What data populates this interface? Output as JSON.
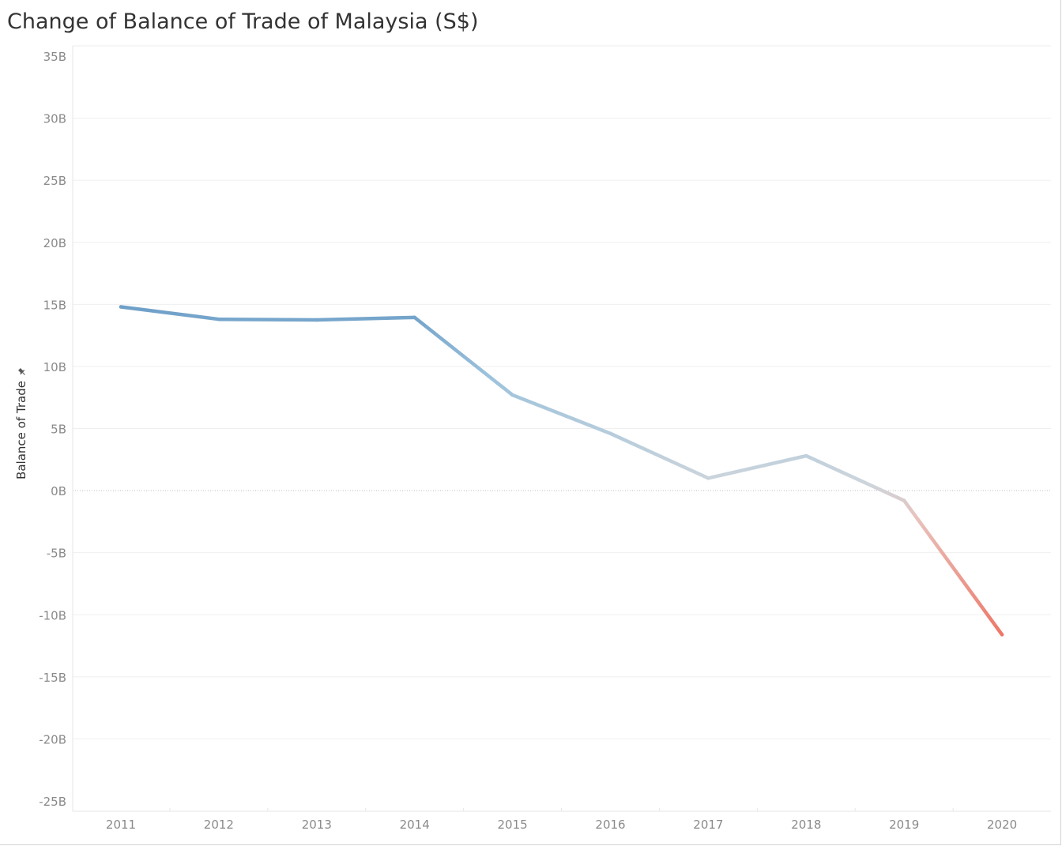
{
  "chart_data": {
    "type": "line",
    "title": "Change of Balance of Trade of Malaysia (S$)",
    "ylabel": "Balance of Trade",
    "xlabel": "",
    "categories": [
      "2011",
      "2012",
      "2013",
      "2014",
      "2015",
      "2016",
      "2017",
      "2018",
      "2019",
      "2020"
    ],
    "series": [
      {
        "values": [
          14.8,
          13.8,
          13.75,
          13.95,
          7.7,
          4.6,
          1.0,
          2.8,
          -0.8,
          -11.6
        ]
      }
    ],
    "ylim": [
      -25,
      35
    ],
    "yticks": [
      35,
      30,
      25,
      20,
      15,
      10,
      5,
      0,
      -5,
      -10,
      -15,
      -20,
      -25
    ],
    "ytick_labels": [
      "35B",
      "30B",
      "25B",
      "20B",
      "15B",
      "10B",
      "5B",
      "0B",
      "-5B",
      "-10B",
      "-15B",
      "-20B",
      "-25B"
    ],
    "grid": true,
    "legend": "none",
    "colors": {
      "positive_high": "#6e9fc8",
      "neutral": "#cdd5dc",
      "negative": "#ee7767",
      "gridline": "#efefef",
      "zero_line": "#bdbdbd",
      "tick_text": "#8a8a8a",
      "title_text": "#333333"
    }
  },
  "icons": {
    "axis_pin": "pin-icon"
  }
}
